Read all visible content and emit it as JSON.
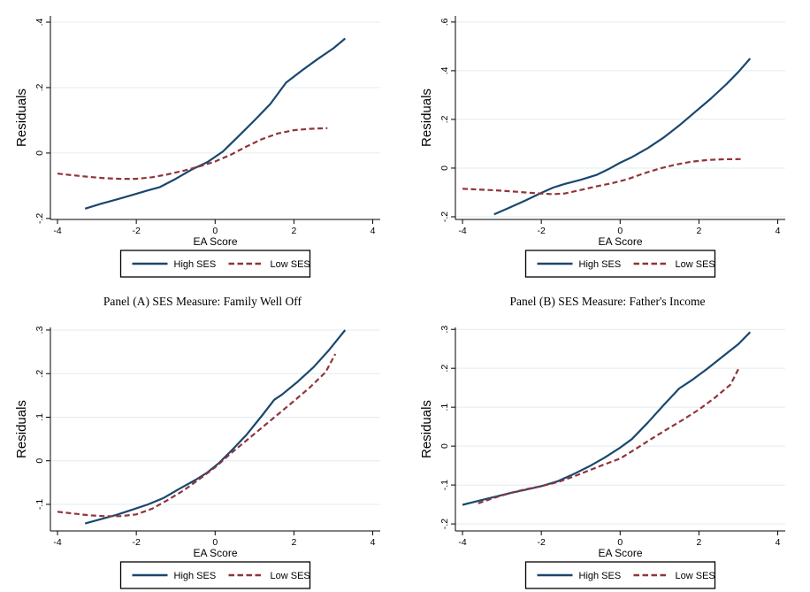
{
  "captions": {
    "left": "Panel (A) SES Measure: Family Well Off",
    "right": "Panel (B) SES Measure: Father's Income"
  },
  "colors": {
    "high_ses": "#1a476f",
    "low_ses": "#90353b",
    "gridline": "#e2ecee",
    "axis": "#000000",
    "background": "#ffffff",
    "legend_border": "#000000"
  },
  "legend": {
    "items": [
      {
        "label": "High SES",
        "style": "solid",
        "color_key": "high_ses"
      },
      {
        "label": "Low SES",
        "style": "dashed",
        "color_key": "low_ses"
      }
    ]
  },
  "chart_data": [
    {
      "id": "top-left",
      "type": "line",
      "title": "",
      "xlabel": "EA Score",
      "ylabel": "Residuals",
      "xlim": [
        -4.18,
        4.19
      ],
      "ylim": [
        -0.203,
        0.419
      ],
      "xticks": [
        -4,
        -2,
        0,
        2,
        4
      ],
      "xtick_labels": [
        "-4",
        "-2",
        "0",
        "2",
        "4"
      ],
      "yticks": [
        -0.2,
        0,
        0.2,
        0.4
      ],
      "ytick_labels": [
        "-.2",
        "0",
        ".2",
        ".4"
      ],
      "grid": "horizontal",
      "legend_position": "below",
      "series": [
        {
          "name": "High SES",
          "dash": false,
          "points": [
            [
              -3.3,
              -0.17
            ],
            [
              -2.9,
              -0.155
            ],
            [
              -2.5,
              -0.142
            ],
            [
              -2.1,
              -0.128
            ],
            [
              -1.7,
              -0.114
            ],
            [
              -1.4,
              -0.104
            ],
            [
              -1.0,
              -0.079
            ],
            [
              -0.6,
              -0.051
            ],
            [
              -0.2,
              -0.028
            ],
            [
              0.2,
              0.005
            ],
            [
              0.6,
              0.052
            ],
            [
              1.0,
              0.1
            ],
            [
              1.4,
              0.15
            ],
            [
              1.8,
              0.215
            ],
            [
              2.2,
              0.252
            ],
            [
              2.6,
              0.287
            ],
            [
              3.0,
              0.32
            ],
            [
              3.3,
              0.35
            ]
          ]
        },
        {
          "name": "Low SES",
          "dash": true,
          "points": [
            [
              -4.0,
              -0.063
            ],
            [
              -3.6,
              -0.068
            ],
            [
              -3.2,
              -0.073
            ],
            [
              -2.8,
              -0.077
            ],
            [
              -2.4,
              -0.079
            ],
            [
              -2.0,
              -0.079
            ],
            [
              -1.6,
              -0.074
            ],
            [
              -1.2,
              -0.065
            ],
            [
              -0.8,
              -0.054
            ],
            [
              -0.4,
              -0.041
            ],
            [
              0.0,
              -0.026
            ],
            [
              0.4,
              -0.005
            ],
            [
              0.8,
              0.02
            ],
            [
              1.2,
              0.043
            ],
            [
              1.6,
              0.06
            ],
            [
              2.0,
              0.07
            ],
            [
              2.4,
              0.074
            ],
            [
              2.85,
              0.076
            ]
          ]
        }
      ]
    },
    {
      "id": "top-right",
      "type": "line",
      "title": "",
      "xlabel": "EA Score",
      "ylabel": "Residuals",
      "xlim": [
        -4.18,
        4.19
      ],
      "ylim": [
        -0.211,
        0.625
      ],
      "xticks": [
        -4,
        -2,
        0,
        2,
        4
      ],
      "xtick_labels": [
        "-4",
        "-2",
        "0",
        "2",
        "4"
      ],
      "yticks": [
        -0.2,
        0,
        0.2,
        0.4,
        0.6
      ],
      "ytick_labels": [
        "-.2",
        "0",
        ".2",
        ".4",
        ".6"
      ],
      "grid": "horizontal",
      "legend_position": "below",
      "series": [
        {
          "name": "High SES",
          "dash": false,
          "points": [
            [
              -3.2,
              -0.19
            ],
            [
              -2.8,
              -0.162
            ],
            [
              -2.4,
              -0.133
            ],
            [
              -2.0,
              -0.102
            ],
            [
              -1.7,
              -0.08
            ],
            [
              -1.4,
              -0.065
            ],
            [
              -1.0,
              -0.048
            ],
            [
              -0.6,
              -0.028
            ],
            [
              -0.3,
              -0.005
            ],
            [
              0.0,
              0.022
            ],
            [
              0.3,
              0.045
            ],
            [
              0.7,
              0.082
            ],
            [
              1.1,
              0.125
            ],
            [
              1.5,
              0.175
            ],
            [
              1.9,
              0.23
            ],
            [
              2.3,
              0.285
            ],
            [
              2.7,
              0.345
            ],
            [
              3.0,
              0.395
            ],
            [
              3.3,
              0.45
            ]
          ]
        },
        {
          "name": "Low SES",
          "dash": true,
          "points": [
            [
              -4.0,
              -0.085
            ],
            [
              -3.6,
              -0.088
            ],
            [
              -3.2,
              -0.091
            ],
            [
              -2.8,
              -0.095
            ],
            [
              -2.4,
              -0.1
            ],
            [
              -2.0,
              -0.105
            ],
            [
              -1.7,
              -0.107
            ],
            [
              -1.4,
              -0.104
            ],
            [
              -1.0,
              -0.09
            ],
            [
              -0.6,
              -0.075
            ],
            [
              -0.2,
              -0.062
            ],
            [
              0.2,
              -0.045
            ],
            [
              0.6,
              -0.022
            ],
            [
              1.0,
              -0.002
            ],
            [
              1.4,
              0.014
            ],
            [
              1.8,
              0.026
            ],
            [
              2.2,
              0.033
            ],
            [
              2.6,
              0.036
            ],
            [
              3.1,
              0.037
            ]
          ]
        }
      ]
    },
    {
      "id": "bottom-left",
      "type": "line",
      "title": "Panel (A) SES Measure: Family Well Off",
      "xlabel": "EA Score",
      "ylabel": "Residuals",
      "xlim": [
        -4.18,
        4.19
      ],
      "ylim": [
        -0.161,
        0.306
      ],
      "xticks": [
        -4,
        -2,
        0,
        2,
        4
      ],
      "xtick_labels": [
        "-4",
        "-2",
        "0",
        "2",
        "4"
      ],
      "yticks": [
        -0.1,
        0,
        0.1,
        0.2,
        0.3
      ],
      "ytick_labels": [
        "-.1",
        "0",
        ".1",
        ".2",
        ".3"
      ],
      "grid": "horizontal",
      "legend_position": "below",
      "series": [
        {
          "name": "High SES",
          "dash": false,
          "points": [
            [
              -3.3,
              -0.144
            ],
            [
              -2.9,
              -0.134
            ],
            [
              -2.5,
              -0.124
            ],
            [
              -2.1,
              -0.112
            ],
            [
              -1.7,
              -0.1
            ],
            [
              -1.3,
              -0.085
            ],
            [
              -0.9,
              -0.064
            ],
            [
              -0.5,
              -0.044
            ],
            [
              -0.2,
              -0.027
            ],
            [
              0.1,
              -0.005
            ],
            [
              0.4,
              0.022
            ],
            [
              0.8,
              0.06
            ],
            [
              1.2,
              0.105
            ],
            [
              1.5,
              0.14
            ],
            [
              1.7,
              0.152
            ],
            [
              2.1,
              0.182
            ],
            [
              2.5,
              0.215
            ],
            [
              2.9,
              0.255
            ],
            [
              3.3,
              0.3
            ]
          ]
        },
        {
          "name": "Low SES",
          "dash": true,
          "points": [
            [
              -4.0,
              -0.117
            ],
            [
              -3.6,
              -0.121
            ],
            [
              -3.2,
              -0.125
            ],
            [
              -2.8,
              -0.127
            ],
            [
              -2.4,
              -0.127
            ],
            [
              -2.0,
              -0.123
            ],
            [
              -1.6,
              -0.11
            ],
            [
              -1.2,
              -0.09
            ],
            [
              -0.8,
              -0.068
            ],
            [
              -0.4,
              -0.042
            ],
            [
              0.0,
              -0.015
            ],
            [
              0.4,
              0.017
            ],
            [
              0.8,
              0.047
            ],
            [
              1.2,
              0.077
            ],
            [
              1.6,
              0.107
            ],
            [
              2.0,
              0.137
            ],
            [
              2.4,
              0.168
            ],
            [
              2.8,
              0.203
            ],
            [
              3.05,
              0.245
            ]
          ]
        }
      ]
    },
    {
      "id": "bottom-right",
      "type": "line",
      "title": "Panel (B) SES Measure: Father's Income",
      "xlabel": "EA Score",
      "ylabel": "Residuals",
      "xlim": [
        -4.18,
        4.19
      ],
      "ylim": [
        -0.218,
        0.305
      ],
      "xticks": [
        -4,
        -2,
        0,
        2,
        4
      ],
      "xtick_labels": [
        "-4",
        "-2",
        "0",
        "2",
        "4"
      ],
      "yticks": [
        -0.2,
        -0.1,
        0,
        0.1,
        0.2,
        0.3
      ],
      "ytick_labels": [
        "-.2",
        "-.1",
        "0",
        ".1",
        ".2",
        ".3"
      ],
      "grid": "horizontal",
      "legend_position": "below",
      "series": [
        {
          "name": "High SES",
          "dash": false,
          "points": [
            [
              -4.0,
              -0.151
            ],
            [
              -3.6,
              -0.141
            ],
            [
              -3.2,
              -0.131
            ],
            [
              -2.8,
              -0.121
            ],
            [
              -2.4,
              -0.112
            ],
            [
              -2.0,
              -0.103
            ],
            [
              -1.6,
              -0.091
            ],
            [
              -1.2,
              -0.073
            ],
            [
              -0.8,
              -0.053
            ],
            [
              -0.4,
              -0.03
            ],
            [
              0.0,
              -0.004
            ],
            [
              0.3,
              0.018
            ],
            [
              0.7,
              0.06
            ],
            [
              1.1,
              0.105
            ],
            [
              1.5,
              0.148
            ],
            [
              1.8,
              0.168
            ],
            [
              2.2,
              0.198
            ],
            [
              2.6,
              0.23
            ],
            [
              3.0,
              0.262
            ],
            [
              3.3,
              0.293
            ]
          ]
        },
        {
          "name": "Low SES",
          "dash": true,
          "points": [
            [
              -3.6,
              -0.147
            ],
            [
              -3.2,
              -0.133
            ],
            [
              -2.8,
              -0.121
            ],
            [
              -2.4,
              -0.111
            ],
            [
              -2.0,
              -0.103
            ],
            [
              -1.6,
              -0.093
            ],
            [
              -1.2,
              -0.079
            ],
            [
              -0.8,
              -0.063
            ],
            [
              -0.4,
              -0.047
            ],
            [
              0.0,
              -0.032
            ],
            [
              0.4,
              -0.007
            ],
            [
              0.8,
              0.019
            ],
            [
              1.2,
              0.044
            ],
            [
              1.6,
              0.068
            ],
            [
              2.0,
              0.094
            ],
            [
              2.4,
              0.124
            ],
            [
              2.8,
              0.158
            ],
            [
              3.0,
              0.198
            ]
          ]
        }
      ]
    }
  ]
}
